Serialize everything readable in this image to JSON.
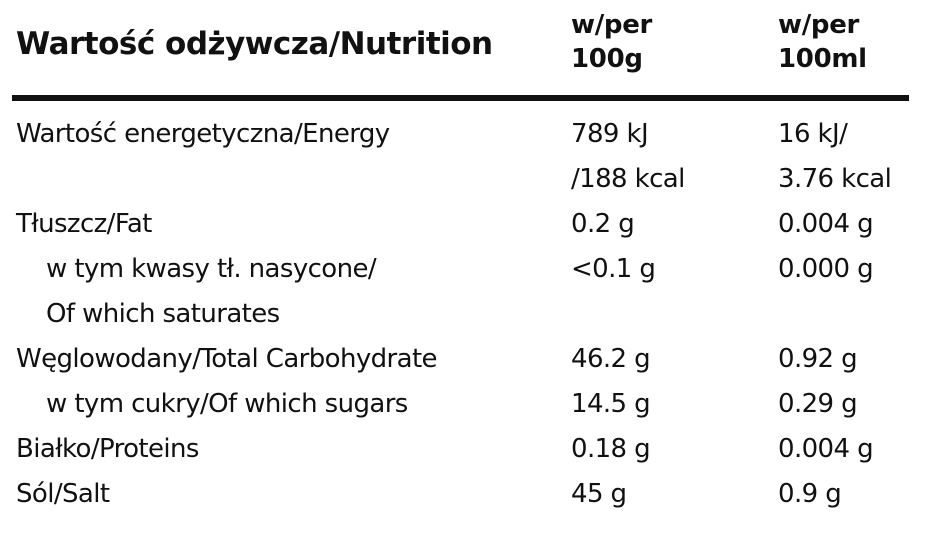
{
  "header": {
    "title": "Wartość odżywcza/Nutrition",
    "col1": [
      "w/per",
      "100g"
    ],
    "col2": [
      "w/per",
      "100ml"
    ]
  },
  "rows": [
    {
      "label": [
        "Wartość energetyczna/Energy"
      ],
      "v1": [
        "789 kJ",
        "/188 kcal"
      ],
      "v2": [
        "16 kJ/",
        "3.76 kcal"
      ]
    },
    {
      "label": [
        "Tłuszcz/Fat"
      ],
      "v1": [
        "0.2 g"
      ],
      "v2": [
        "0.004 g"
      ]
    },
    {
      "label": [
        "w tym kwasy tł. nasycone/",
        "Of which saturates"
      ],
      "v1": [
        "<0.1 g"
      ],
      "v2": [
        "0.000 g"
      ]
    },
    {
      "label": [
        "Węglowodany/Total Carbohydrate"
      ],
      "v1": [
        "46.2 g"
      ],
      "v2": [
        "0.92 g"
      ]
    },
    {
      "label": [
        "w tym cukry/Of which sugars"
      ],
      "v1": [
        "14.5 g"
      ],
      "v2": [
        "0.29 g"
      ]
    },
    {
      "label": [
        "Białko/Proteins"
      ],
      "v1": [
        "0.18 g"
      ],
      "v2": [
        "0.004 g"
      ]
    },
    {
      "label": [
        "Sól/Salt"
      ],
      "v1": [
        "45 g"
      ],
      "v2": [
        "0.9 g"
      ]
    }
  ]
}
